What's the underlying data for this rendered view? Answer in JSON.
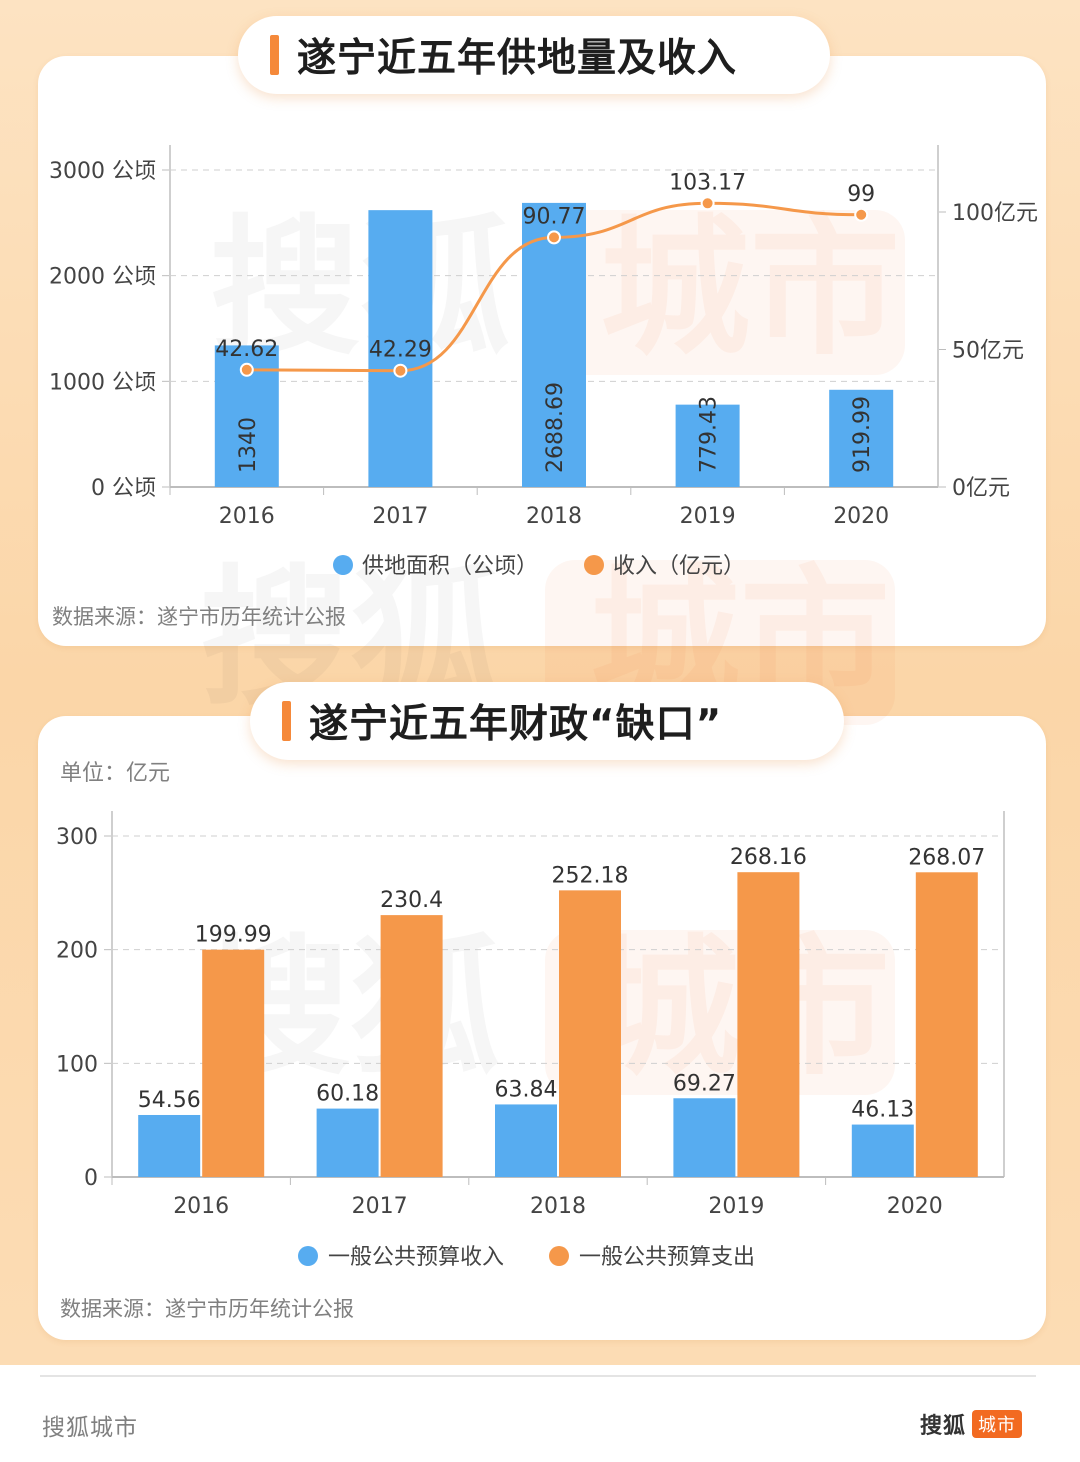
{
  "footer": {
    "brand_left": "搜狐城市",
    "brand_right_main": "搜狐",
    "brand_right_tag": "城市"
  },
  "watermark": {
    "text": "搜狐城市"
  },
  "colors": {
    "blue": "#57acf0",
    "orange": "#f5984a",
    "accent": "#f5893a",
    "card_bg": "#ffffff",
    "page_bg": "#fcdcb4"
  },
  "chart_data": [
    {
      "type": "bar+line",
      "title": "遂宁近五年供地量及收入",
      "categories": [
        "2016",
        "2017",
        "2018",
        "2019",
        "2020"
      ],
      "left_axis": {
        "ticks": [
          "0 公顷",
          "1000 公顷",
          "2000 公顷",
          "3000 公顷"
        ],
        "tick_values": [
          0,
          1000,
          2000,
          3000
        ],
        "ylim": [
          0,
          3000
        ]
      },
      "right_axis": {
        "ticks": [
          "0亿元",
          "50亿元",
          "100亿元"
        ],
        "tick_values": [
          0,
          50,
          100
        ],
        "ylim": [
          0,
          110
        ]
      },
      "series": [
        {
          "name": "供地面积（公顷）",
          "kind": "bar",
          "axis": "left",
          "values": [
            1340,
            2620,
            2688.69,
            779.43,
            919.99
          ],
          "labels": [
            "1340",
            "",
            "2688.69",
            "779.43",
            "919.99"
          ]
        },
        {
          "name": "收入（亿元）",
          "kind": "line",
          "axis": "right",
          "values": [
            42.62,
            42.29,
            90.77,
            103.17,
            99
          ],
          "labels": [
            "42.62",
            "42.29",
            "90.77",
            "103.17",
            "99"
          ]
        }
      ],
      "grid": true,
      "legend": "bottom",
      "source": "数据来源：遂宁市历年统计公报"
    },
    {
      "type": "bar",
      "title": "遂宁近五年财政“缺口”",
      "unit": "单位：亿元",
      "categories": [
        "2016",
        "2017",
        "2018",
        "2019",
        "2020"
      ],
      "yaxis": {
        "ticks": [
          "0",
          "100",
          "200",
          "300"
        ],
        "tick_values": [
          0,
          100,
          200,
          300
        ],
        "ylim": [
          0,
          300
        ]
      },
      "series": [
        {
          "name": "一般公共预算收入",
          "values": [
            54.56,
            60.18,
            63.84,
            69.27,
            46.13
          ],
          "labels": [
            "54.56",
            "60.18",
            "63.84",
            "69.27",
            "46.13"
          ]
        },
        {
          "name": "一般公共预算支出",
          "values": [
            199.99,
            230.4,
            252.18,
            268.16,
            268.07
          ],
          "labels": [
            "199.99",
            "230.4",
            "252.18",
            "268.16",
            "268.07"
          ]
        }
      ],
      "grid": true,
      "legend": "bottom",
      "source": "数据来源：遂宁市历年统计公报"
    }
  ]
}
